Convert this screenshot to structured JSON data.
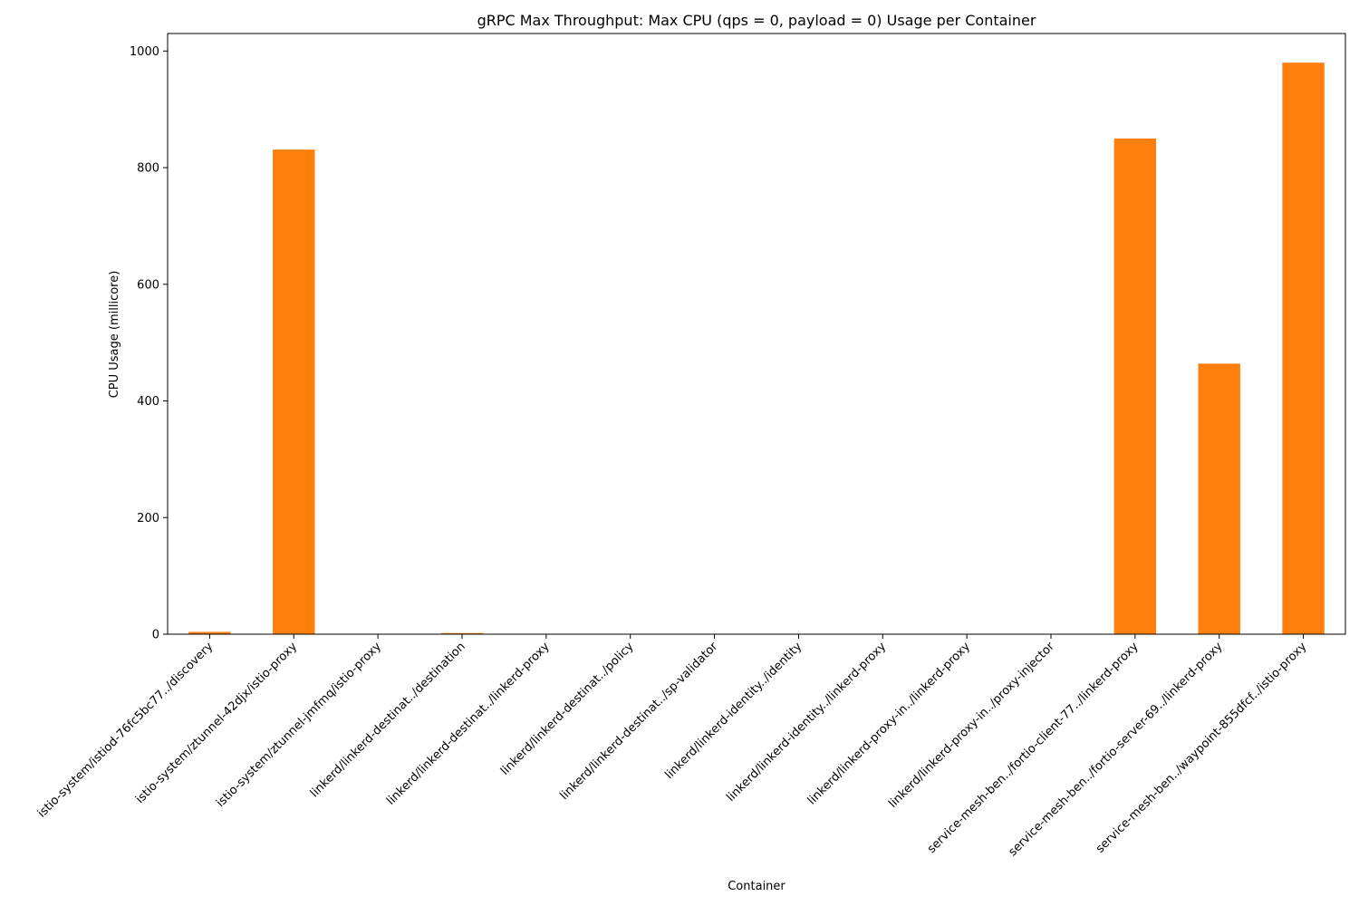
{
  "chart_data": {
    "type": "bar",
    "title": "gRPC Max Throughput: Max CPU (qps = 0, payload = 0) Usage per Container",
    "xlabel": "Container",
    "ylabel": "CPU Usage (millicore)",
    "ylim": [
      0,
      1030
    ],
    "yticks": [
      0,
      200,
      400,
      600,
      800,
      1000
    ],
    "grid": false,
    "legend": "none",
    "bar_color": "#ff7f0e",
    "categories": [
      "istio-system/istiod-76fc5bc77../discovery",
      "istio-system/ztunnel-42djx/istio-proxy",
      "istio-system/ztunnel-jmfmq/istio-proxy",
      "linkerd/linkerd-destinat../destination",
      "linkerd/linkerd-destinat../linkerd-proxy",
      "linkerd/linkerd-destinat../policy",
      "linkerd/linkerd-destinat../sp-validator",
      "linkerd/linkerd-identity../identity",
      "linkerd/linkerd-identity../linkerd-proxy",
      "linkerd/linkerd-proxy-in../linkerd-proxy",
      "linkerd/linkerd-proxy-in../proxy-injector",
      "service-mesh-ben../fortio-client-77../linkerd-proxy",
      "service-mesh-ben../fortio-server-69../linkerd-proxy",
      "service-mesh-ben../waypoint-855dfcf../istio-proxy"
    ],
    "values": [
      4,
      831,
      0,
      2,
      0,
      0,
      0,
      0,
      0,
      0,
      0,
      850,
      464,
      980
    ]
  }
}
